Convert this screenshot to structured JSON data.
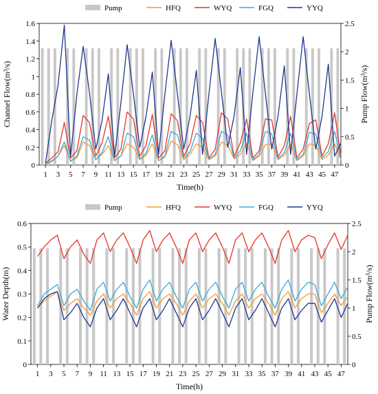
{
  "colors": {
    "Pump": "#c8c8c8",
    "HFQ": "#f59a2e",
    "WYQ": "#e5332a",
    "FGQ": "#3ea8d8",
    "YYQ": "#1f3590"
  },
  "chart_data": [
    {
      "type": "line",
      "xlabel": "Time(h)",
      "ylabel": "Channel Flow(m³/s)",
      "y2label": "Pump Flow(m³/s)",
      "xlim": [
        0,
        48
      ],
      "ylim": [
        0,
        1.6
      ],
      "y2lim": [
        0,
        2.5
      ],
      "xticks": [
        1,
        3,
        5,
        7,
        9,
        11,
        13,
        15,
        17,
        19,
        21,
        23,
        25,
        27,
        29,
        31,
        33,
        35,
        37,
        39,
        41,
        43,
        45,
        47
      ],
      "yticks": [
        "0",
        "0.2",
        "0.4",
        "0.6",
        "0.8",
        "1",
        "1.2",
        "1.4",
        "1.6"
      ],
      "y2ticks": [
        "0",
        "0.5",
        "1",
        "1.5",
        "2",
        "2.5"
      ],
      "legend": [
        "Pump",
        "HFQ",
        "WYQ",
        "FGQ",
        "YYQ"
      ],
      "legend_position": "top",
      "grid": false,
      "pump": {
        "name": "Pump",
        "value": 2.06,
        "hours": [
          1,
          2,
          3,
          5,
          6,
          8,
          9,
          10,
          12,
          13,
          15,
          16,
          17,
          19,
          20,
          22,
          23,
          24,
          26,
          27,
          29,
          30,
          32,
          33,
          34,
          36,
          37,
          38,
          40,
          41,
          43,
          44,
          45,
          47,
          48
        ]
      },
      "series": [
        {
          "name": "HFQ",
          "values": [
            0.01,
            0.05,
            0.1,
            0.22,
            0.05,
            0.08,
            0.26,
            0.22,
            0.06,
            0.12,
            0.22,
            0.05,
            0.1,
            0.24,
            0.2,
            0.06,
            0.11,
            0.24,
            0.05,
            0.09,
            0.27,
            0.23,
            0.06,
            0.12,
            0.24,
            0.2,
            0.06,
            0.1,
            0.26,
            0.22,
            0.07,
            0.12,
            0.24,
            0.05,
            0.1,
            0.23,
            0.24,
            0.06,
            0.11,
            0.23,
            0.05,
            0.1,
            0.24,
            0.22,
            0.06,
            0.11,
            0.24,
            0.06
          ]
        },
        {
          "name": "WYQ",
          "values": [
            0.02,
            0.08,
            0.15,
            0.48,
            0.08,
            0.16,
            0.56,
            0.48,
            0.1,
            0.25,
            0.55,
            0.08,
            0.18,
            0.6,
            0.52,
            0.1,
            0.22,
            0.57,
            0.08,
            0.16,
            0.58,
            0.5,
            0.1,
            0.24,
            0.56,
            0.48,
            0.08,
            0.18,
            0.59,
            0.52,
            0.1,
            0.25,
            0.52,
            0.08,
            0.16,
            0.52,
            0.51,
            0.09,
            0.22,
            0.55,
            0.08,
            0.18,
            0.47,
            0.51,
            0.1,
            0.24,
            0.59,
            0.1
          ]
        },
        {
          "name": "FGQ",
          "values": [
            0.01,
            0.04,
            0.1,
            0.26,
            0.04,
            0.1,
            0.32,
            0.28,
            0.06,
            0.14,
            0.32,
            0.05,
            0.1,
            0.36,
            0.32,
            0.07,
            0.13,
            0.34,
            0.05,
            0.1,
            0.38,
            0.34,
            0.08,
            0.15,
            0.36,
            0.3,
            0.07,
            0.12,
            0.38,
            0.34,
            0.08,
            0.16,
            0.36,
            0.06,
            0.12,
            0.38,
            0.35,
            0.07,
            0.14,
            0.36,
            0.06,
            0.12,
            0.37,
            0.35,
            0.08,
            0.15,
            0.38,
            0.07
          ]
        },
        {
          "name": "YYQ",
          "values": [
            0.02,
            0.5,
            0.9,
            1.58,
            0.1,
            0.8,
            1.34,
            0.82,
            0.18,
            0.5,
            1.03,
            0.1,
            0.7,
            1.36,
            0.8,
            0.2,
            0.55,
            1.05,
            0.12,
            0.8,
            1.41,
            0.8,
            0.18,
            0.55,
            1.07,
            0.12,
            0.8,
            1.43,
            0.82,
            0.2,
            0.55,
            1.1,
            0.12,
            0.82,
            1.45,
            0.8,
            0.18,
            0.55,
            1.12,
            0.12,
            0.8,
            1.45,
            0.8,
            0.18,
            0.55,
            1.14,
            0.1,
            0.25
          ]
        }
      ]
    },
    {
      "type": "line",
      "xlabel": "Time(h)",
      "ylabel": "Water Depth(m)",
      "y2label": "Pump Flow(m³/s)",
      "xlim": [
        0,
        48
      ],
      "ylim": [
        0,
        0.6
      ],
      "y2lim": [
        0,
        2.5
      ],
      "xticks": [
        1,
        3,
        5,
        7,
        9,
        11,
        13,
        15,
        17,
        19,
        21,
        23,
        25,
        27,
        29,
        31,
        33,
        35,
        37,
        39,
        41,
        43,
        45,
        47
      ],
      "yticks": [
        "0",
        "0.1",
        "0.2",
        "0.3",
        "0.4",
        "0.5",
        "0.6"
      ],
      "y2ticks": [
        "0",
        "0.5",
        "1",
        "1.5",
        "2",
        "2.5"
      ],
      "legend": [
        "Pump",
        "HFQ",
        "WYQ",
        "FGQ",
        "YYQ"
      ],
      "legend_position": "top",
      "grid": false,
      "pump": {
        "name": "Pump",
        "value": 2.06,
        "hours": [
          1,
          2,
          3,
          5,
          6,
          8,
          9,
          10,
          12,
          13,
          15,
          16,
          17,
          19,
          20,
          22,
          23,
          24,
          26,
          27,
          29,
          30,
          32,
          33,
          34,
          36,
          37,
          38,
          40,
          41,
          43,
          44,
          45,
          47,
          48
        ]
      },
      "series": [
        {
          "name": "HFQ",
          "values": [
            0.24,
            0.27,
            0.29,
            0.31,
            0.23,
            0.26,
            0.28,
            0.24,
            0.21,
            0.27,
            0.3,
            0.24,
            0.28,
            0.3,
            0.26,
            0.21,
            0.28,
            0.31,
            0.24,
            0.28,
            0.3,
            0.26,
            0.21,
            0.27,
            0.3,
            0.24,
            0.28,
            0.3,
            0.26,
            0.21,
            0.27,
            0.3,
            0.24,
            0.28,
            0.3,
            0.26,
            0.21,
            0.28,
            0.31,
            0.24,
            0.28,
            0.3,
            0.3,
            0.22,
            0.26,
            0.3,
            0.25,
            0.29
          ]
        },
        {
          "name": "WYQ",
          "values": [
            0.46,
            0.5,
            0.53,
            0.55,
            0.45,
            0.5,
            0.53,
            0.47,
            0.43,
            0.53,
            0.56,
            0.48,
            0.53,
            0.56,
            0.5,
            0.43,
            0.53,
            0.57,
            0.48,
            0.53,
            0.56,
            0.5,
            0.43,
            0.53,
            0.56,
            0.48,
            0.53,
            0.56,
            0.5,
            0.43,
            0.53,
            0.56,
            0.48,
            0.53,
            0.56,
            0.5,
            0.43,
            0.53,
            0.57,
            0.48,
            0.53,
            0.55,
            0.54,
            0.45,
            0.51,
            0.56,
            0.49,
            0.55
          ]
        },
        {
          "name": "FGQ",
          "values": [
            0.25,
            0.3,
            0.32,
            0.34,
            0.25,
            0.3,
            0.32,
            0.27,
            0.23,
            0.32,
            0.35,
            0.27,
            0.32,
            0.35,
            0.29,
            0.24,
            0.32,
            0.36,
            0.27,
            0.32,
            0.35,
            0.29,
            0.24,
            0.32,
            0.35,
            0.27,
            0.32,
            0.35,
            0.29,
            0.24,
            0.32,
            0.35,
            0.27,
            0.32,
            0.35,
            0.29,
            0.24,
            0.32,
            0.36,
            0.27,
            0.32,
            0.35,
            0.34,
            0.25,
            0.3,
            0.35,
            0.28,
            0.33
          ]
        },
        {
          "name": "YYQ",
          "values": [
            0.24,
            0.28,
            0.3,
            0.31,
            0.19,
            0.22,
            0.26,
            0.2,
            0.16,
            0.24,
            0.28,
            0.19,
            0.23,
            0.28,
            0.22,
            0.16,
            0.24,
            0.28,
            0.19,
            0.23,
            0.28,
            0.22,
            0.16,
            0.24,
            0.28,
            0.19,
            0.23,
            0.28,
            0.22,
            0.16,
            0.24,
            0.28,
            0.19,
            0.23,
            0.28,
            0.22,
            0.16,
            0.24,
            0.28,
            0.19,
            0.23,
            0.26,
            0.26,
            0.18,
            0.23,
            0.28,
            0.2,
            0.26
          ]
        }
      ]
    }
  ]
}
